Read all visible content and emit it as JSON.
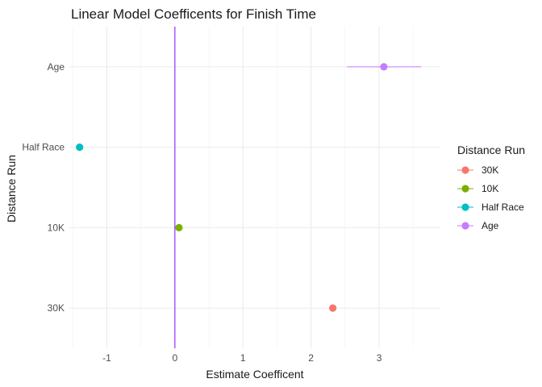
{
  "chart_data": {
    "type": "scatter",
    "title": "Linear Model Coefficents for Finish Time",
    "xlabel": "Estimate Coefficent",
    "ylabel": "Distance Run",
    "xlim": [
      -1.55,
      3.9
    ],
    "x_ticks": [
      -1,
      0,
      1,
      2,
      3
    ],
    "x_tick_labels": [
      "-1",
      "0",
      "1",
      "2",
      "3"
    ],
    "categories": [
      "30K",
      "10K",
      "Half Race",
      "Age"
    ],
    "reference_line": {
      "x": 0,
      "color": "#9B30FF"
    },
    "grid": true,
    "legend": {
      "title": "Distance Run",
      "position": "right"
    },
    "series": [
      {
        "name": "30K",
        "color": "#F8766D",
        "x": 2.32,
        "xmin": 2.29,
        "xmax": 2.35
      },
      {
        "name": "10K",
        "color": "#7CAE00",
        "x": 0.06,
        "xmin": 0.03,
        "xmax": 0.09
      },
      {
        "name": "Half Race",
        "color": "#00BFC4",
        "x": -1.4,
        "xmin": -1.43,
        "xmax": -1.37
      },
      {
        "name": "Age",
        "color": "#C77CFF",
        "x": 3.07,
        "xmin": 2.53,
        "xmax": 3.62
      }
    ]
  }
}
